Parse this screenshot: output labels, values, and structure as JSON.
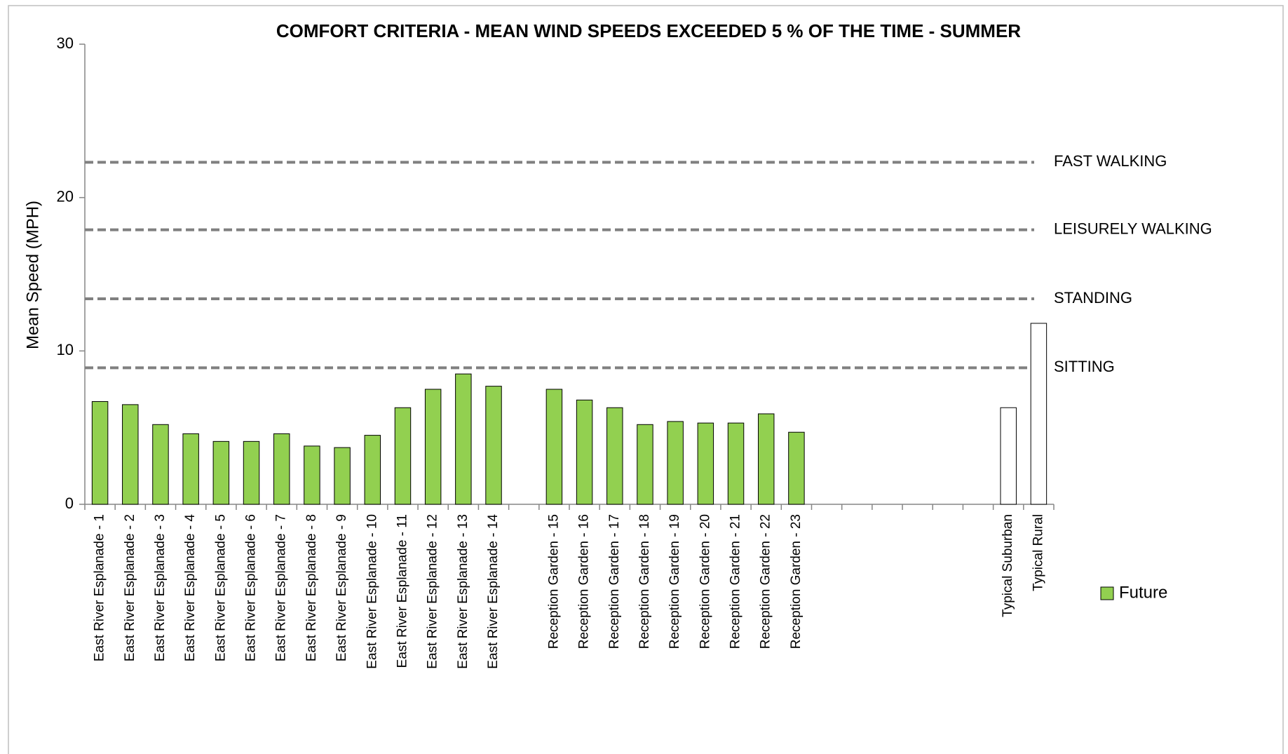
{
  "chart_data": {
    "type": "bar",
    "title": "COMFORT CRITERIA - MEAN WIND SPEEDS EXCEEDED 5 % OF THE TIME - SUMMER",
    "y_label": "Mean Speed (MPH)",
    "categories": [
      "East River Esplanade - 1",
      "East River Esplanade - 2",
      "East River Esplanade - 3",
      "East River Esplanade - 4",
      "East River Esplanade - 5",
      "East River Esplanade - 6",
      "East River Esplanade - 7",
      "East River Esplanade - 8",
      "East River Esplanade - 9",
      "East River Esplanade - 10",
      "East River Esplanade - 11",
      "East River Esplanade - 12",
      "East River Esplanade - 13",
      "East River Esplanade - 14",
      null,
      "Reception Garden - 15",
      "Reception Garden - 16",
      "Reception Garden - 17",
      "Reception Garden - 18",
      "Reception Garden - 19",
      "Reception Garden - 20",
      "Reception Garden - 21",
      "Reception Garden - 22",
      "Reception Garden - 23",
      null,
      null,
      null,
      null,
      null,
      null,
      "Typical Suburban",
      "Typical Rural"
    ],
    "series": [
      {
        "name": "Future",
        "color": "#92d050",
        "values": [
          6.7,
          6.5,
          5.2,
          4.6,
          4.1,
          4.1,
          4.6,
          3.8,
          3.7,
          4.5,
          6.3,
          7.5,
          8.5,
          7.7,
          null,
          7.5,
          6.8,
          6.3,
          5.2,
          5.4,
          5.3,
          5.3,
          5.9,
          4.7,
          null,
          null,
          null,
          null,
          null,
          null,
          6.3,
          11.8
        ],
        "point_colors": [
          "#92d050",
          "#92d050",
          "#92d050",
          "#92d050",
          "#92d050",
          "#92d050",
          "#92d050",
          "#92d050",
          "#92d050",
          "#92d050",
          "#92d050",
          "#92d050",
          "#92d050",
          "#92d050",
          null,
          "#92d050",
          "#92d050",
          "#92d050",
          "#92d050",
          "#92d050",
          "#92d050",
          "#92d050",
          "#92d050",
          "#92d050",
          null,
          null,
          null,
          null,
          null,
          null,
          "#ffffff",
          "#ffffff"
        ]
      }
    ],
    "reference_lines": [
      {
        "label": "FAST WALKING",
        "value": 22.3
      },
      {
        "label": "LEISURELY WALKING",
        "value": 17.9
      },
      {
        "label": "STANDING",
        "value": 13.4
      },
      {
        "label": "SITTING",
        "value": 8.9
      }
    ],
    "reference_color": "#808080",
    "ylim": [
      0,
      30
    ],
    "yticks": [
      0,
      10,
      20,
      30
    ],
    "grid": false,
    "legend": "right"
  }
}
